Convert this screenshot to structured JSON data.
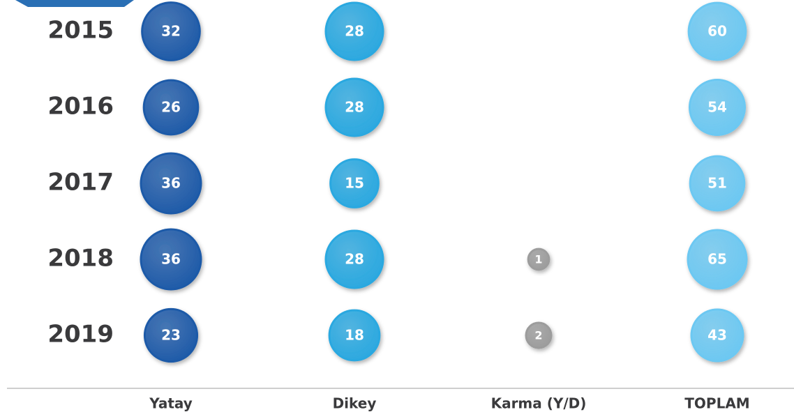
{
  "chart_data": {
    "type": "bubble",
    "categories": [
      "2015",
      "2016",
      "2017",
      "2018",
      "2019"
    ],
    "series": [
      {
        "name": "Yatay",
        "color": "#1d5aa8",
        "values": [
          32,
          26,
          36,
          36,
          23
        ]
      },
      {
        "name": "Dikey",
        "color": "#2aa8e0",
        "values": [
          28,
          28,
          15,
          28,
          18
        ]
      },
      {
        "name": "Karma (Y/D)",
        "color": "#9c9c9c",
        "values": [
          null,
          null,
          null,
          1,
          2
        ]
      },
      {
        "name": "TOPLAM",
        "color": "#6cc8f2",
        "values": [
          60,
          54,
          51,
          65,
          43
        ]
      }
    ]
  }
}
